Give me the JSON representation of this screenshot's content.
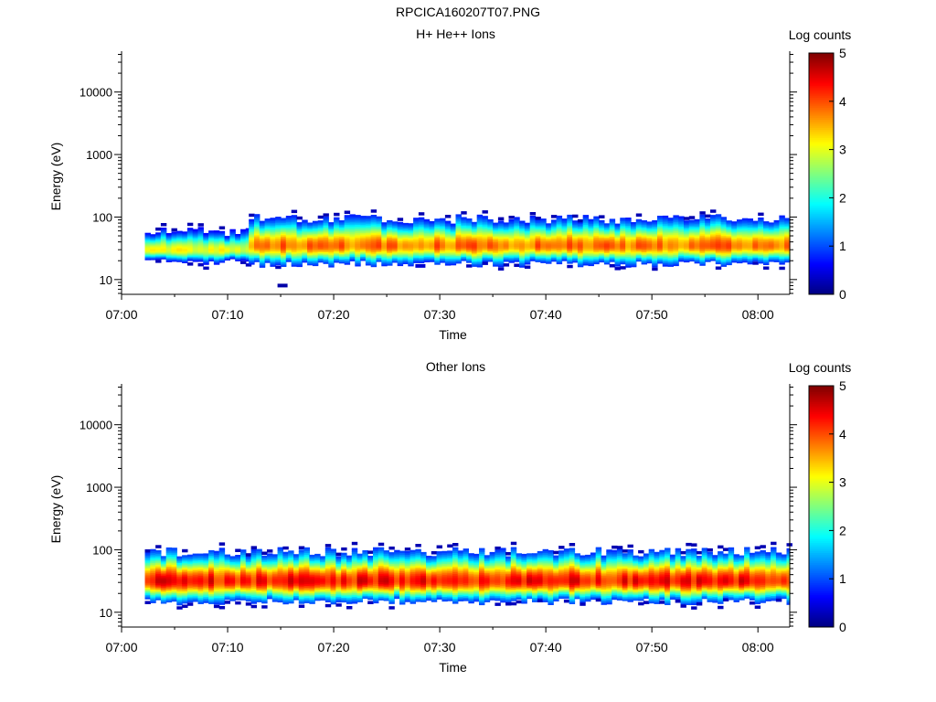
{
  "figure": {
    "title": "RPCICA160207T07.PNG"
  },
  "colormap": [
    "#00007f",
    "#0000ff",
    "#007fff",
    "#00ffff",
    "#7fff7f",
    "#ffff00",
    "#ff7f00",
    "#ff0000",
    "#7f0000"
  ],
  "chart_data": [
    {
      "type": "heatmap",
      "title": "H+ He++ Ions",
      "xlabel": "Time",
      "ylabel": "Energy (eV)",
      "x_ticks": [
        "07:00",
        "07:10",
        "07:20",
        "07:30",
        "07:40",
        "07:50",
        "08:00"
      ],
      "x_range_minutes": [
        0,
        63
      ],
      "y_ticks": [
        "10",
        "100",
        "1000",
        "10000"
      ],
      "y_scale": "log",
      "y_range": [
        5.8,
        45000
      ],
      "colorbar": {
        "label": "Log counts",
        "ticks": [
          "0",
          "1",
          "2",
          "3",
          "4",
          "5"
        ],
        "range": [
          0,
          5
        ]
      },
      "description_of_data": "log10 counts vs time (minutes after 07:00) and energy (eV)",
      "band": {
        "segments": [
          {
            "from_min": 2.2,
            "to_min": 12.0,
            "e_low": 20,
            "e_high": 60,
            "peak_energy": 30,
            "peak_log_counts": 3.0
          },
          {
            "from_min": 12.0,
            "to_min": 63.0,
            "e_low": 18,
            "e_high": 95,
            "peak_energy": 35,
            "peak_log_counts": 3.8
          }
        ],
        "isolated_points": [
          {
            "time_min": 14.7,
            "energy_ev": 8.0,
            "log_counts": 0.2
          },
          {
            "time_min": 27.7,
            "energy_ev": 16.5,
            "log_counts": 0.4
          }
        ]
      }
    },
    {
      "type": "heatmap",
      "title": "Other Ions",
      "xlabel": "Time",
      "ylabel": "Energy (eV)",
      "x_ticks": [
        "07:00",
        "07:10",
        "07:20",
        "07:30",
        "07:40",
        "07:50",
        "08:00"
      ],
      "x_range_minutes": [
        0,
        63
      ],
      "y_ticks": [
        "10",
        "100",
        "1000",
        "10000"
      ],
      "y_scale": "log",
      "y_range": [
        5.8,
        45000
      ],
      "colorbar": {
        "label": "Log counts",
        "ticks": [
          "0",
          "1",
          "2",
          "3",
          "4",
          "5"
        ],
        "range": [
          0,
          5
        ]
      },
      "description_of_data": "log10 counts vs time (minutes after 07:00) and energy (eV)",
      "band": {
        "segments": [
          {
            "from_min": 2.2,
            "to_min": 63.0,
            "e_low": 15,
            "e_high": 95,
            "peak_energy": 32,
            "peak_log_counts": 4.3
          }
        ],
        "isolated_points": []
      }
    }
  ]
}
